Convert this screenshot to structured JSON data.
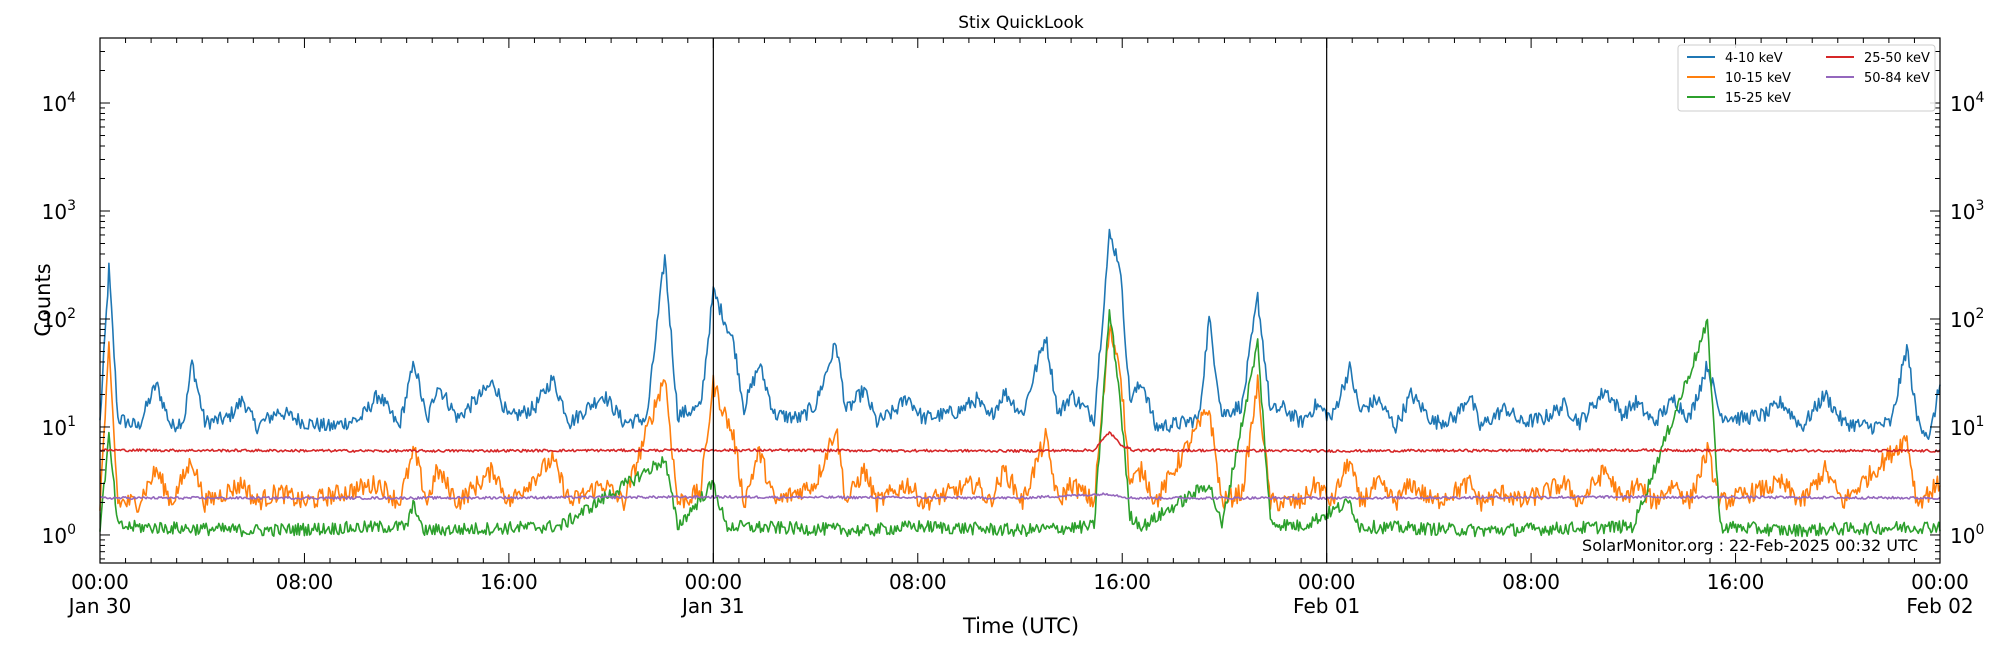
{
  "chart_data": {
    "type": "line",
    "title": "Stix QuickLook",
    "xlabel": "Time (UTC)",
    "ylabel": "Counts",
    "yscale": "log",
    "ylim": [
      0.55,
      40000
    ],
    "xlim_hours": [
      0,
      72
    ],
    "y_ticks": [
      {
        "value": 1,
        "base": "10",
        "exp": "0"
      },
      {
        "value": 10,
        "base": "10",
        "exp": "1"
      },
      {
        "value": 100,
        "base": "10",
        "exp": "2"
      },
      {
        "value": 1000,
        "base": "10",
        "exp": "3"
      },
      {
        "value": 10000,
        "base": "10",
        "exp": "4"
      }
    ],
    "x_ticks": [
      {
        "hour": 0,
        "time": "00:00",
        "date": "Jan 30"
      },
      {
        "hour": 8,
        "time": "08:00",
        "date": ""
      },
      {
        "hour": 16,
        "time": "16:00",
        "date": ""
      },
      {
        "hour": 24,
        "time": "00:00",
        "date": "Jan 31"
      },
      {
        "hour": 32,
        "time": "08:00",
        "date": ""
      },
      {
        "hour": 40,
        "time": "16:00",
        "date": ""
      },
      {
        "hour": 48,
        "time": "00:00",
        "date": "Feb 01"
      },
      {
        "hour": 56,
        "time": "08:00",
        "date": ""
      },
      {
        "hour": 64,
        "time": "16:00",
        "date": ""
      },
      {
        "hour": 72,
        "time": "00:00",
        "date": "Feb 02"
      }
    ],
    "day_boundaries_hours": [
      24,
      48
    ],
    "legend_position": "top-right",
    "annotation": "SolarMonitor.org : 22-Feb-2025 00:32 UTC",
    "series": [
      {
        "name": "4-10 keV",
        "color": "#1f77b4",
        "points": [
          [
            0,
            11
          ],
          [
            0.35,
            290
          ],
          [
            0.7,
            12
          ],
          [
            1.5,
            10
          ],
          [
            2.2,
            25
          ],
          [
            2.8,
            10
          ],
          [
            3.3,
            12
          ],
          [
            3.6,
            40
          ],
          [
            4.1,
            11
          ],
          [
            5,
            12
          ],
          [
            5.6,
            18
          ],
          [
            6.1,
            10
          ],
          [
            7,
            14
          ],
          [
            8,
            11
          ],
          [
            9,
            10
          ],
          [
            10.2,
            12
          ],
          [
            10.9,
            20
          ],
          [
            11.7,
            10
          ],
          [
            12.3,
            40
          ],
          [
            12.8,
            11
          ],
          [
            13.2,
            25
          ],
          [
            14,
            12
          ],
          [
            15.4,
            26
          ],
          [
            16,
            12
          ],
          [
            17,
            15
          ],
          [
            17.7,
            28
          ],
          [
            18.4,
            11
          ],
          [
            19.7,
            20
          ],
          [
            20.5,
            11
          ],
          [
            21.4,
            12
          ],
          [
            22.1,
            380
          ],
          [
            22.6,
            13
          ],
          [
            23.5,
            15
          ],
          [
            24,
            180
          ],
          [
            24.8,
            60
          ],
          [
            25.2,
            15
          ],
          [
            25.8,
            38
          ],
          [
            26.4,
            13
          ],
          [
            27.4,
            12
          ],
          [
            28,
            16
          ],
          [
            28.8,
            60
          ],
          [
            29.2,
            14
          ],
          [
            29.9,
            22
          ],
          [
            30.4,
            11
          ],
          [
            31.1,
            14
          ],
          [
            31.6,
            19
          ],
          [
            32.2,
            12
          ],
          [
            33,
            13
          ],
          [
            33.6,
            14
          ],
          [
            34.3,
            18
          ],
          [
            34.8,
            12
          ],
          [
            35.4,
            21
          ],
          [
            36.1,
            13
          ],
          [
            37,
            70
          ],
          [
            37.5,
            13
          ],
          [
            38,
            20
          ],
          [
            38.9,
            12
          ],
          [
            39.5,
            600
          ],
          [
            39.9,
            330
          ],
          [
            40.3,
            18
          ],
          [
            40.8,
            26
          ],
          [
            41.3,
            10
          ],
          [
            42.5,
            11
          ],
          [
            43,
            12
          ],
          [
            43.4,
            100
          ],
          [
            43.9,
            13
          ],
          [
            44.7,
            16
          ],
          [
            45.3,
            160
          ],
          [
            45.8,
            14
          ],
          [
            46.3,
            15
          ],
          [
            47,
            11
          ],
          [
            47.6,
            16
          ],
          [
            48.2,
            12
          ],
          [
            48.9,
            35
          ],
          [
            49.3,
            14
          ],
          [
            50,
            18
          ],
          [
            50.7,
            10
          ],
          [
            51.3,
            20
          ],
          [
            52.2,
            11
          ],
          [
            53,
            12
          ],
          [
            53.6,
            20
          ],
          [
            54,
            10
          ],
          [
            55,
            15
          ],
          [
            55.6,
            11
          ],
          [
            56.5,
            12
          ],
          [
            57.3,
            16
          ],
          [
            57.9,
            11
          ],
          [
            58.9,
            22
          ],
          [
            59.6,
            13
          ],
          [
            60.1,
            17
          ],
          [
            60.8,
            11
          ],
          [
            61.6,
            18
          ],
          [
            62.2,
            12
          ],
          [
            62.9,
            38
          ],
          [
            63.4,
            13
          ],
          [
            64.2,
            12
          ],
          [
            65.2,
            13
          ],
          [
            65.8,
            17
          ],
          [
            66.6,
            10
          ],
          [
            67.5,
            20
          ],
          [
            68.2,
            11
          ],
          [
            69.3,
            10
          ],
          [
            70.1,
            11
          ],
          [
            70.7,
            55
          ],
          [
            71.1,
            12
          ],
          [
            71.6,
            8
          ],
          [
            72,
            25
          ]
        ]
      },
      {
        "name": "10-15 keV",
        "color": "#ff7f0e",
        "points": [
          [
            0,
            2
          ],
          [
            0.35,
            50
          ],
          [
            0.7,
            2
          ],
          [
            1.5,
            2
          ],
          [
            2.2,
            4
          ],
          [
            2.8,
            2
          ],
          [
            3.6,
            5
          ],
          [
            4.1,
            2
          ],
          [
            5.6,
            3
          ],
          [
            6.1,
            2
          ],
          [
            7,
            2.5
          ],
          [
            8,
            2
          ],
          [
            10.9,
            3
          ],
          [
            11.7,
            2
          ],
          [
            12.3,
            6
          ],
          [
            12.8,
            2
          ],
          [
            13.2,
            4
          ],
          [
            14,
            2
          ],
          [
            15.4,
            4
          ],
          [
            16,
            2
          ],
          [
            17.7,
            5
          ],
          [
            18.4,
            2
          ],
          [
            19.7,
            3
          ],
          [
            20.5,
            2
          ],
          [
            22.1,
            30
          ],
          [
            22.6,
            2
          ],
          [
            23.5,
            2.5
          ],
          [
            24,
            25
          ],
          [
            24.8,
            8
          ],
          [
            25.2,
            2
          ],
          [
            25.8,
            6
          ],
          [
            26.4,
            2
          ],
          [
            28,
            3
          ],
          [
            28.8,
            10
          ],
          [
            29.2,
            2
          ],
          [
            29.9,
            4
          ],
          [
            30.4,
            2
          ],
          [
            31.6,
            3
          ],
          [
            32.2,
            2
          ],
          [
            34.3,
            3
          ],
          [
            34.8,
            2
          ],
          [
            35.4,
            4
          ],
          [
            36.1,
            2
          ],
          [
            37,
            8
          ],
          [
            37.5,
            2
          ],
          [
            38,
            3
          ],
          [
            38.9,
            2
          ],
          [
            39.5,
            80
          ],
          [
            39.9,
            40
          ],
          [
            40.3,
            3
          ],
          [
            40.8,
            4
          ],
          [
            41.3,
            2
          ],
          [
            43.4,
            15
          ],
          [
            43.9,
            2
          ],
          [
            44.7,
            2.5
          ],
          [
            45.3,
            25
          ],
          [
            45.8,
            2
          ],
          [
            47,
            2
          ],
          [
            47.6,
            3
          ],
          [
            48.2,
            2
          ],
          [
            48.9,
            5
          ],
          [
            49.3,
            2
          ],
          [
            50,
            3
          ],
          [
            50.7,
            2
          ],
          [
            51.3,
            3
          ],
          [
            52.2,
            2
          ],
          [
            53.6,
            3
          ],
          [
            54,
            2
          ],
          [
            55,
            2.5
          ],
          [
            55.6,
            2
          ],
          [
            57.3,
            3
          ],
          [
            57.9,
            2
          ],
          [
            58.9,
            4
          ],
          [
            59.6,
            2
          ],
          [
            60.1,
            3
          ],
          [
            60.8,
            2
          ],
          [
            61.6,
            3
          ],
          [
            62.2,
            2
          ],
          [
            62.9,
            6
          ],
          [
            63.4,
            2
          ],
          [
            65.8,
            3
          ],
          [
            66.6,
            2
          ],
          [
            67.5,
            4
          ],
          [
            68.2,
            2
          ],
          [
            70.7,
            8
          ],
          [
            71.1,
            2
          ],
          [
            72,
            3
          ]
        ]
      },
      {
        "name": "15-25 keV",
        "color": "#2ca02c",
        "points": [
          [
            0,
            1.2
          ],
          [
            0.35,
            8
          ],
          [
            0.7,
            1.2
          ],
          [
            6,
            1.1
          ],
          [
            12,
            1.2
          ],
          [
            12.3,
            2
          ],
          [
            12.6,
            1.1
          ],
          [
            18,
            1.2
          ],
          [
            22.1,
            5
          ],
          [
            22.6,
            1.2
          ],
          [
            24,
            3
          ],
          [
            24.5,
            1.2
          ],
          [
            30,
            1.1
          ],
          [
            32,
            1.2
          ],
          [
            36,
            1.1
          ],
          [
            38.9,
            1.2
          ],
          [
            39.5,
            120
          ],
          [
            39.9,
            20
          ],
          [
            40.3,
            1.5
          ],
          [
            40.8,
            1.2
          ],
          [
            43.4,
            3
          ],
          [
            43.9,
            1.2
          ],
          [
            45.3,
            60
          ],
          [
            45.8,
            1.3
          ],
          [
            47,
            1.2
          ],
          [
            48.9,
            2
          ],
          [
            49.3,
            1.2
          ],
          [
            54,
            1.1
          ],
          [
            60,
            1.2
          ],
          [
            62.9,
            90
          ],
          [
            63.4,
            1.2
          ],
          [
            66,
            1.1
          ],
          [
            72,
            1.2
          ]
        ]
      },
      {
        "name": "25-50 keV",
        "color": "#d62728",
        "points": [
          [
            0,
            6.1
          ],
          [
            12,
            6.0
          ],
          [
            24,
            6.1
          ],
          [
            36,
            6.0
          ],
          [
            38.9,
            6.1
          ],
          [
            39.5,
            9
          ],
          [
            39.9,
            7
          ],
          [
            40.4,
            6.1
          ],
          [
            48,
            6.0
          ],
          [
            60,
            6.1
          ],
          [
            72,
            6.0
          ]
        ]
      },
      {
        "name": "50-84 keV",
        "color": "#9467bd",
        "points": [
          [
            0,
            2.2
          ],
          [
            12,
            2.2
          ],
          [
            24,
            2.25
          ],
          [
            36,
            2.2
          ],
          [
            39.5,
            2.4
          ],
          [
            40.3,
            2.2
          ],
          [
            48,
            2.2
          ],
          [
            60,
            2.25
          ],
          [
            72,
            2.2
          ]
        ]
      }
    ]
  }
}
